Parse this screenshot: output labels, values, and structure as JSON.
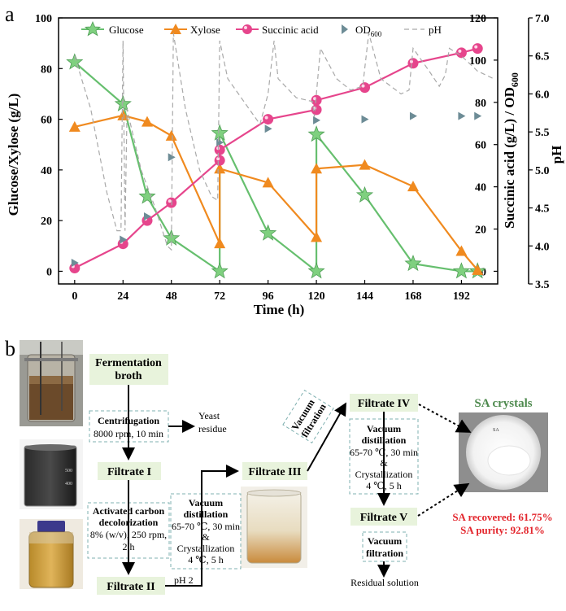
{
  "panel_a": {
    "label": "a"
  },
  "panel_b": {
    "label": "b"
  },
  "chart_data": {
    "type": "line",
    "x": [
      0,
      24,
      36,
      48,
      72,
      96,
      120,
      144,
      168,
      192,
      200
    ],
    "xticks": [
      "0",
      "24",
      "48",
      "72",
      "96",
      "120",
      "144",
      "168",
      "192"
    ],
    "xlabel": "Time (h)",
    "xlim": [
      -8,
      210
    ],
    "ylabel": "Glucose/Xylose (g/L)",
    "ylim": [
      -5,
      100
    ],
    "yticks": [
      "0",
      "20",
      "40",
      "60",
      "80",
      "100"
    ],
    "y2label": "Succinic acid (g/L) / OD",
    "y2label_sub": "600",
    "y2lim": [
      -6,
      120
    ],
    "y2ticks": [
      "0",
      "20",
      "40",
      "60",
      "80",
      "100",
      "120"
    ],
    "y3label": "pH",
    "y3lim": [
      3.5,
      7.0
    ],
    "y3ticks": [
      "3.5",
      "4.0",
      "4.5",
      "5.0",
      "5.5",
      "6.0",
      "6.5",
      "7.0"
    ],
    "legend": [
      "Glucose",
      "Xylose",
      "Succinic acid",
      "OD",
      "pH"
    ],
    "legend_od_sub": "600",
    "legend_position": "top",
    "series": [
      {
        "name": "Glucose",
        "axis": "left",
        "color": "#66bf6e",
        "marker": "star",
        "points": [
          [
            0,
            82.5
          ],
          [
            24,
            66
          ],
          [
            36,
            29.5
          ],
          [
            48,
            13
          ],
          [
            72,
            0
          ],
          [
            72,
            54.5
          ],
          [
            96,
            15
          ],
          [
            120,
            0
          ],
          [
            120,
            54
          ],
          [
            144,
            30
          ],
          [
            168,
            3
          ],
          [
            192,
            0
          ],
          [
            200,
            0
          ]
        ]
      },
      {
        "name": "Xylose",
        "axis": "left",
        "color": "#f08a1f",
        "marker": "triangle",
        "points": [
          [
            0,
            57
          ],
          [
            24,
            61.5
          ],
          [
            36,
            59
          ],
          [
            48,
            53.5
          ],
          [
            72,
            11
          ],
          [
            72,
            40.5
          ],
          [
            96,
            35
          ],
          [
            120,
            13.5
          ],
          [
            120,
            40.5
          ],
          [
            144,
            42
          ],
          [
            168,
            33.5
          ],
          [
            192,
            8
          ],
          [
            200,
            0.5
          ]
        ]
      },
      {
        "name": "Succinic acid",
        "axis": "right",
        "color": "#e6458c",
        "marker": "circle",
        "points": [
          [
            0,
            1.5
          ],
          [
            24,
            13
          ],
          [
            36,
            24
          ],
          [
            48,
            32.5
          ],
          [
            72,
            52.5
          ],
          [
            72,
            57.5
          ],
          [
            96,
            72
          ],
          [
            120,
            76.5
          ],
          [
            120,
            81
          ],
          [
            144,
            87
          ],
          [
            168,
            98.5
          ],
          [
            192,
            103.5
          ],
          [
            200,
            105.5
          ]
        ]
      },
      {
        "name": "OD",
        "axis": "right",
        "color": "#6d8c96",
        "marker": "right-triangle",
        "points": [
          [
            0,
            4
          ],
          [
            24,
            15
          ],
          [
            36,
            26
          ],
          [
            48,
            54
          ],
          [
            72,
            61
          ],
          [
            96,
            67.5
          ],
          [
            120,
            71.5
          ],
          [
            144,
            72
          ],
          [
            168,
            73.5
          ],
          [
            192,
            73.5
          ],
          [
            200,
            73.5
          ]
        ]
      },
      {
        "name": "pH",
        "axis": "pH",
        "color": "#a9a9a9",
        "style": "dashed",
        "points": [
          [
            0,
            6.5
          ],
          [
            8,
            5.8
          ],
          [
            16,
            4.7
          ],
          [
            21,
            4.2
          ],
          [
            23,
            4.2
          ],
          [
            24,
            6.7
          ],
          [
            25,
            4.2
          ],
          [
            26,
            5.8
          ],
          [
            33,
            5.0
          ],
          [
            40,
            4.5
          ],
          [
            46,
            4.0
          ],
          [
            48,
            3.95
          ],
          [
            49,
            6.8
          ],
          [
            55,
            5.8
          ],
          [
            62,
            5.0
          ],
          [
            68,
            4.65
          ],
          [
            71,
            4.6
          ],
          [
            72,
            6.7
          ],
          [
            76,
            6.2
          ],
          [
            84,
            5.9
          ],
          [
            92,
            5.6
          ],
          [
            96,
            6.0
          ],
          [
            99,
            6.7
          ],
          [
            101,
            6.2
          ],
          [
            110,
            5.95
          ],
          [
            118,
            5.9
          ],
          [
            119,
            5.7
          ],
          [
            122,
            6.6
          ],
          [
            130,
            6.2
          ],
          [
            137,
            6.05
          ],
          [
            143,
            6.1
          ],
          [
            146,
            6.8
          ],
          [
            152,
            6.2
          ],
          [
            162,
            6.0
          ],
          [
            166,
            6.05
          ],
          [
            168,
            6.6
          ],
          [
            176,
            6.3
          ],
          [
            181,
            6.1
          ],
          [
            184,
            6.25
          ],
          [
            186,
            6.6
          ],
          [
            192,
            6.5
          ],
          [
            200,
            6.3
          ],
          [
            208,
            6.2
          ]
        ]
      }
    ]
  },
  "process": {
    "fermentation": [
      "Fermentation",
      "broth"
    ],
    "centrifugation": {
      "title": "Centrifugation",
      "detail": "8000 rpm, 10 min"
    },
    "yeast_residue": [
      "Yeast",
      "residue"
    ],
    "filtrate1": "Filtrate I",
    "decolorization": {
      "title1": "Activated carbon",
      "title2": "decolorization",
      "detail1": "8% (w/v), 250 rpm,",
      "detail2": "2 h"
    },
    "filtrate2": "Filtrate II",
    "ph_label": "pH 2",
    "vd1": {
      "title1": "Vacuum",
      "title2": "distillation",
      "detail1": "65-70 ℃, 30 min",
      "amp": "&",
      "cryst": "Crystallization",
      "detail2": "4 ℃, 5 h"
    },
    "filtrate3": "Filtrate III",
    "vacuum_filtration_rotated": [
      "Vacuum",
      "filtration"
    ],
    "filtrate4": "Filtrate IV",
    "vd2": {
      "title1": "Vacuum",
      "title2": "distillation",
      "detail1": "65-70 ℃, 30 min",
      "amp": "&",
      "cryst": "Crystallization",
      "detail2": "4 ℃, 5 h"
    },
    "filtrate5": "Filtrate V",
    "vacuum_filtration2": [
      "Vacuum",
      "filtration"
    ],
    "residual": "Residual solution",
    "sa_crystals": "SA crystals",
    "sa_recovered": "SA recovered: 61.75%",
    "sa_purity": "SA purity: 92.81%",
    "jar_label": "SA"
  },
  "colors": {
    "glucose": "#66bf6e",
    "xylose": "#f08a1f",
    "succinic": "#e6458c",
    "od": "#6d8c96",
    "ph": "#a9a9a9",
    "box": "#e8f3dc",
    "title_green": "#4e8a4e",
    "red": "#e3262d"
  }
}
